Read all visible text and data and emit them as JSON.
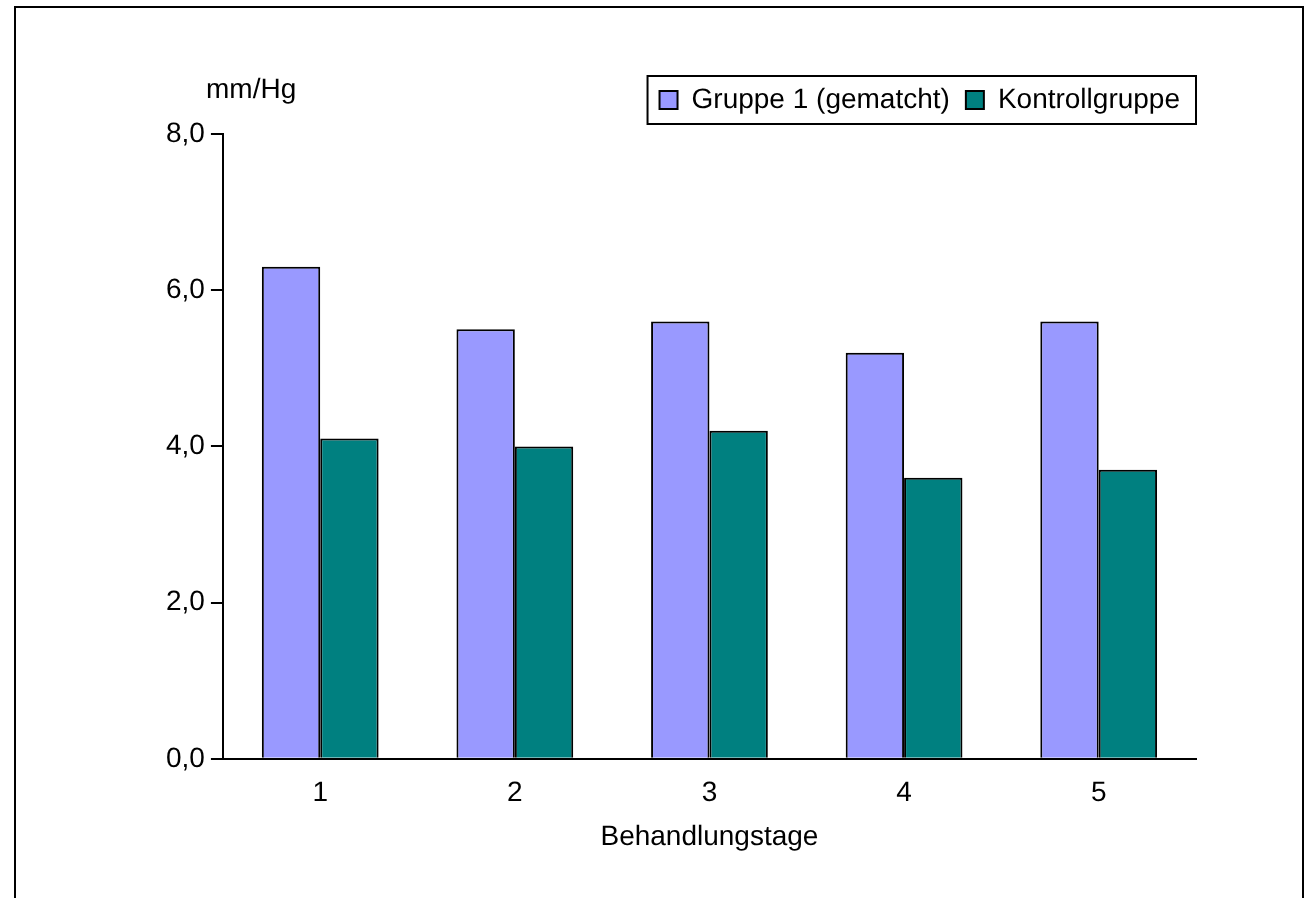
{
  "chart_data": {
    "type": "bar",
    "ylabel": "mm/Hg",
    "xlabel": "Behandlungstage",
    "categories": [
      "1",
      "2",
      "3",
      "4",
      "5"
    ],
    "series": [
      {
        "name": "Gruppe 1 (gematcht)",
        "color": "#9999ff",
        "values": [
          6.3,
          5.5,
          5.6,
          5.2,
          5.6
        ]
      },
      {
        "name": "Kontrollgruppe",
        "color": "#008080",
        "values": [
          4.1,
          4.0,
          4.2,
          3.6,
          3.7
        ]
      }
    ],
    "ylim": [
      0,
      8
    ],
    "yticks": [
      {
        "value": 0,
        "label": "0,0"
      },
      {
        "value": 2,
        "label": "2,0"
      },
      {
        "value": 4,
        "label": "4,0"
      },
      {
        "value": 6,
        "label": "6,0"
      },
      {
        "value": 8,
        "label": "8,0"
      }
    ],
    "grid": false,
    "legend": "top right"
  }
}
